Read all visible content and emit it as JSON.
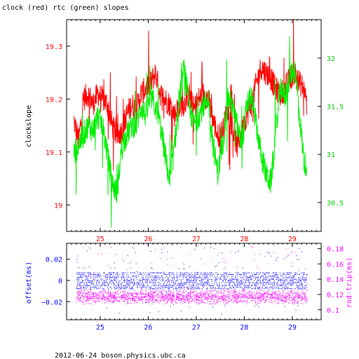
{
  "title": "clock (red) rtc (green) slopes",
  "footer": "2012-06-24 boson.physics.ubc.ca",
  "colors": {
    "clock": "#ff0000",
    "rtc": "#00ee00",
    "offset": "#0000ff",
    "roundtrip": "#ff00ff",
    "axis": "#000000"
  },
  "chart_data": [
    {
      "type": "line",
      "title": "clock (red) rtc (green) slopes",
      "xlabel": "",
      "ylabel": "clockslope",
      "y2label": "",
      "xlim": [
        24.3,
        29.6
      ],
      "ylim": [
        18.95,
        19.35
      ],
      "y2lim": [
        30.2,
        32.4
      ],
      "xticks": [
        25,
        26,
        27,
        28,
        29
      ],
      "yticks": [
        19,
        19.1,
        19.2,
        19.3
      ],
      "y2ticks": [
        30.5,
        31,
        31.5,
        32
      ],
      "series": [
        {
          "axis": "left",
          "color": "#ff0000",
          "x": [
            24.45,
            24.55,
            24.65,
            24.75,
            24.85,
            24.95,
            25.05,
            25.15,
            25.25,
            25.35,
            25.45,
            25.55,
            25.65,
            25.75,
            25.85,
            25.95,
            26.05,
            26.15,
            26.25,
            26.35,
            26.45,
            26.55,
            26.65,
            26.75,
            26.85,
            26.95,
            27.05,
            27.15,
            27.25,
            27.35,
            27.45,
            27.55,
            27.65,
            27.75,
            27.85,
            27.95,
            28.05,
            28.15,
            28.25,
            28.35,
            28.45,
            28.55,
            28.65,
            28.75,
            28.85,
            28.95,
            29.05,
            29.15,
            29.25,
            29.3
          ],
          "y": [
            19.16,
            19.12,
            19.2,
            19.21,
            19.19,
            19.21,
            19.2,
            19.19,
            19.15,
            19.13,
            19.14,
            19.17,
            19.19,
            19.18,
            19.21,
            19.22,
            19.23,
            19.25,
            19.21,
            19.2,
            19.19,
            19.17,
            19.19,
            19.19,
            19.21,
            19.18,
            19.2,
            19.21,
            19.2,
            19.16,
            19.13,
            19.14,
            19.18,
            19.15,
            19.11,
            19.14,
            19.17,
            19.19,
            19.23,
            19.26,
            19.25,
            19.24,
            19.22,
            19.21,
            19.22,
            19.24,
            19.25,
            19.23,
            19.22,
            19.19
          ]
        },
        {
          "axis": "right",
          "color": "#00ee00",
          "x": [
            24.45,
            24.55,
            24.65,
            24.75,
            24.85,
            24.95,
            25.05,
            25.15,
            25.25,
            25.35,
            25.45,
            25.55,
            25.65,
            25.75,
            25.85,
            25.95,
            26.05,
            26.15,
            26.25,
            26.35,
            26.45,
            26.55,
            26.65,
            26.75,
            26.85,
            26.95,
            27.05,
            27.15,
            27.25,
            27.35,
            27.45,
            27.55,
            27.65,
            27.75,
            27.85,
            27.95,
            28.05,
            28.15,
            28.25,
            28.35,
            28.45,
            28.55,
            28.65,
            28.75,
            28.85,
            28.95,
            29.05,
            29.15,
            29.25,
            29.3
          ],
          "y": [
            31.0,
            31.1,
            31.2,
            31.3,
            31.25,
            31.4,
            31.3,
            31.0,
            30.7,
            30.6,
            31.1,
            31.2,
            31.3,
            31.3,
            31.5,
            31.4,
            31.6,
            31.5,
            31.3,
            31.0,
            30.7,
            31.1,
            31.6,
            31.9,
            31.5,
            31.3,
            31.4,
            31.5,
            31.6,
            31.1,
            30.8,
            31.1,
            31.6,
            31.5,
            31.3,
            31.1,
            31.5,
            31.6,
            31.3,
            31.0,
            30.8,
            30.7,
            31.2,
            31.7,
            31.6,
            31.8,
            31.9,
            31.4,
            30.9,
            30.9
          ]
        }
      ]
    },
    {
      "type": "scatter",
      "title": "",
      "xlabel": "",
      "ylabel": "offset(ms)",
      "y2label": "rnd-trip(ms)",
      "xlim": [
        24.3,
        29.6
      ],
      "ylim": [
        -0.037,
        0.035
      ],
      "y2lim": [
        0.087,
        0.187
      ],
      "xticks": [
        25,
        26,
        27,
        28,
        29
      ],
      "yticks": [
        -0.02,
        0,
        0.02
      ],
      "y2ticks": [
        0.1,
        0.12,
        0.14,
        0.16,
        0.18
      ],
      "ytick_labels": [
        "−0.02",
        "0",
        "0.02"
      ],
      "y2tick_labels": [
        "0.1",
        "0.12",
        "0.14",
        "0.16",
        "0.18"
      ],
      "series": [
        {
          "axis": "left",
          "color": "#0000ff",
          "x": [
            24.5,
            25.0,
            25.5,
            26.0,
            26.5,
            27.0,
            27.5,
            28.0,
            28.5,
            29.0,
            29.3
          ],
          "y": [
            0.0,
            0.0,
            0.0,
            0.0,
            0.0,
            0.0,
            0.0,
            0.0,
            0.0,
            0.0,
            0.0
          ],
          "band": [
            -0.008,
            0.008
          ]
        },
        {
          "axis": "right",
          "color": "#ff00ff",
          "x": [
            24.5,
            25.0,
            25.5,
            26.0,
            26.5,
            27.0,
            27.5,
            28.0,
            28.5,
            29.0,
            29.3
          ],
          "y": [
            0.118,
            0.119,
            0.118,
            0.118,
            0.119,
            0.118,
            0.118,
            0.119,
            0.118,
            0.118,
            0.118
          ],
          "band": [
            0.107,
            0.128
          ]
        }
      ]
    }
  ]
}
